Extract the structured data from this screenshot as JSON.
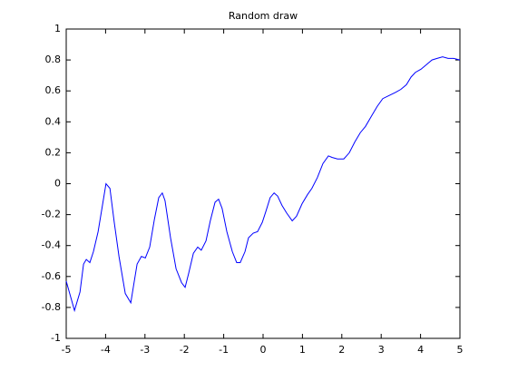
{
  "chart_data": {
    "type": "line",
    "title": "Random draw",
    "x": [
      -5,
      -4.79,
      -4.65,
      -4.56,
      -4.49,
      -4.4,
      -4.31,
      -4.19,
      -4.08,
      -3.99,
      -3.89,
      -3.78,
      -3.66,
      -3.5,
      -3.36,
      -3.29,
      -3.2,
      -3.09,
      -2.99,
      -2.88,
      -2.76,
      -2.65,
      -2.56,
      -2.49,
      -2.35,
      -2.21,
      -2.07,
      -1.98,
      -1.89,
      -1.77,
      -1.66,
      -1.57,
      -1.45,
      -1.34,
      -1.22,
      -1.13,
      -1.04,
      -0.92,
      -0.78,
      -0.67,
      -0.58,
      -0.46,
      -0.37,
      -0.25,
      -0.14,
      -0.02,
      0.07,
      0.18,
      0.28,
      0.37,
      0.48,
      0.6,
      0.74,
      0.85,
      0.99,
      1.13,
      1.24,
      1.38,
      1.52,
      1.66,
      1.75,
      1.89,
      2.05,
      2.19,
      2.33,
      2.47,
      2.6,
      2.76,
      2.9,
      3.04,
      3.2,
      3.36,
      3.5,
      3.64,
      3.76,
      3.87,
      4.01,
      4.15,
      4.29,
      4.42,
      4.56,
      4.7,
      4.84,
      5
    ],
    "series": [
      {
        "color": "#0000ff",
        "values": [
          -0.63,
          -0.82,
          -0.7,
          -0.52,
          -0.49,
          -0.51,
          -0.44,
          -0.31,
          -0.14,
          0.0,
          -0.03,
          -0.25,
          -0.47,
          -0.71,
          -0.77,
          -0.66,
          -0.52,
          -0.47,
          -0.48,
          -0.41,
          -0.23,
          -0.09,
          -0.06,
          -0.11,
          -0.35,
          -0.55,
          -0.64,
          -0.67,
          -0.58,
          -0.45,
          -0.41,
          -0.43,
          -0.37,
          -0.24,
          -0.12,
          -0.1,
          -0.16,
          -0.31,
          -0.44,
          -0.51,
          -0.51,
          -0.44,
          -0.35,
          -0.32,
          -0.31,
          -0.25,
          -0.18,
          -0.09,
          -0.06,
          -0.08,
          -0.14,
          -0.19,
          -0.24,
          -0.21,
          -0.13,
          -0.07,
          -0.03,
          0.04,
          0.13,
          0.18,
          0.17,
          0.16,
          0.16,
          0.2,
          0.27,
          0.33,
          0.37,
          0.44,
          0.5,
          0.55,
          0.57,
          0.59,
          0.61,
          0.64,
          0.69,
          0.72,
          0.74,
          0.77,
          0.8,
          0.81,
          0.82,
          0.81,
          0.81,
          0.8
        ]
      }
    ],
    "xlim": [
      -5,
      5
    ],
    "xticks": [
      -5,
      -4,
      -3,
      -2,
      -1,
      0,
      1,
      2,
      3,
      4,
      5
    ],
    "ylim": [
      -1,
      1
    ],
    "yticks": [
      -1,
      -0.8,
      -0.6,
      -0.4,
      -0.2,
      0,
      0.2,
      0.4,
      0.6,
      0.8,
      1
    ],
    "grid": false
  }
}
